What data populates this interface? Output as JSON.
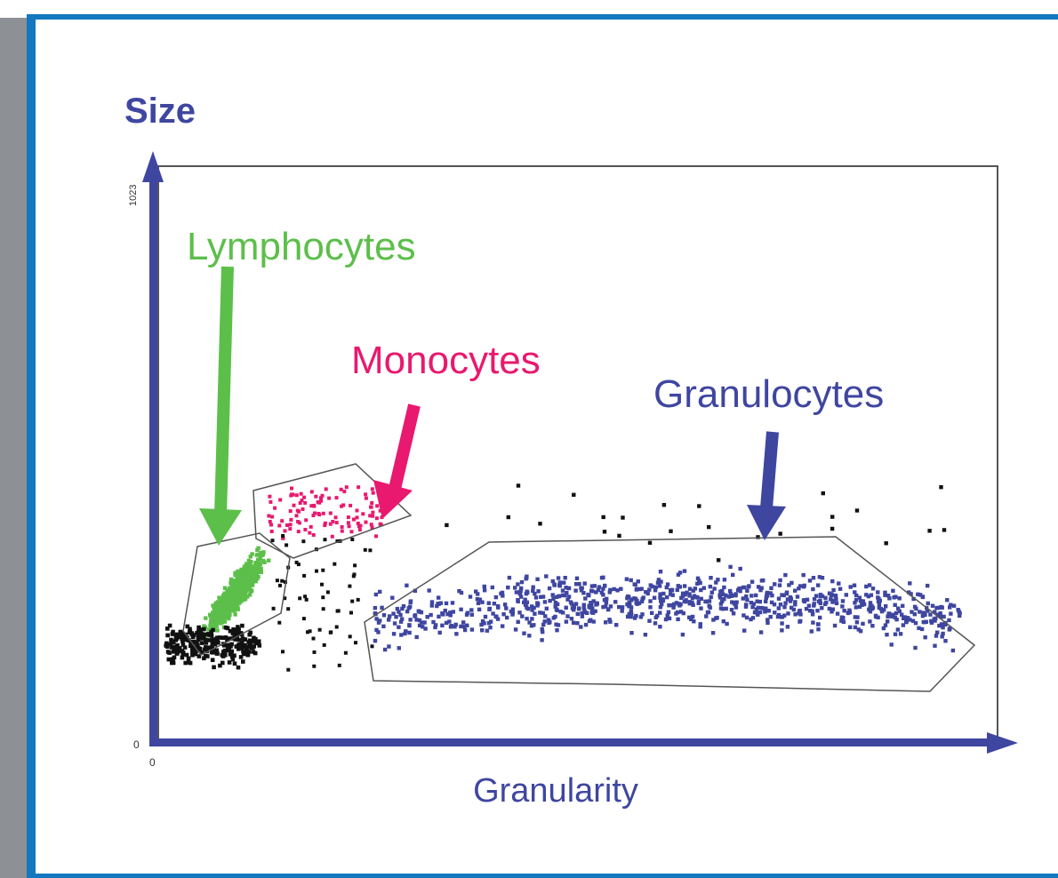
{
  "axes": {
    "y_label": "Size",
    "x_label": "Granularity",
    "y_max_tick": "1023",
    "y_min_tick": "0",
    "x_min_tick": "0"
  },
  "populations": [
    {
      "label": "Lymphocytes"
    },
    {
      "label": "Monocytes"
    },
    {
      "label": "Granulocytes"
    }
  ]
}
